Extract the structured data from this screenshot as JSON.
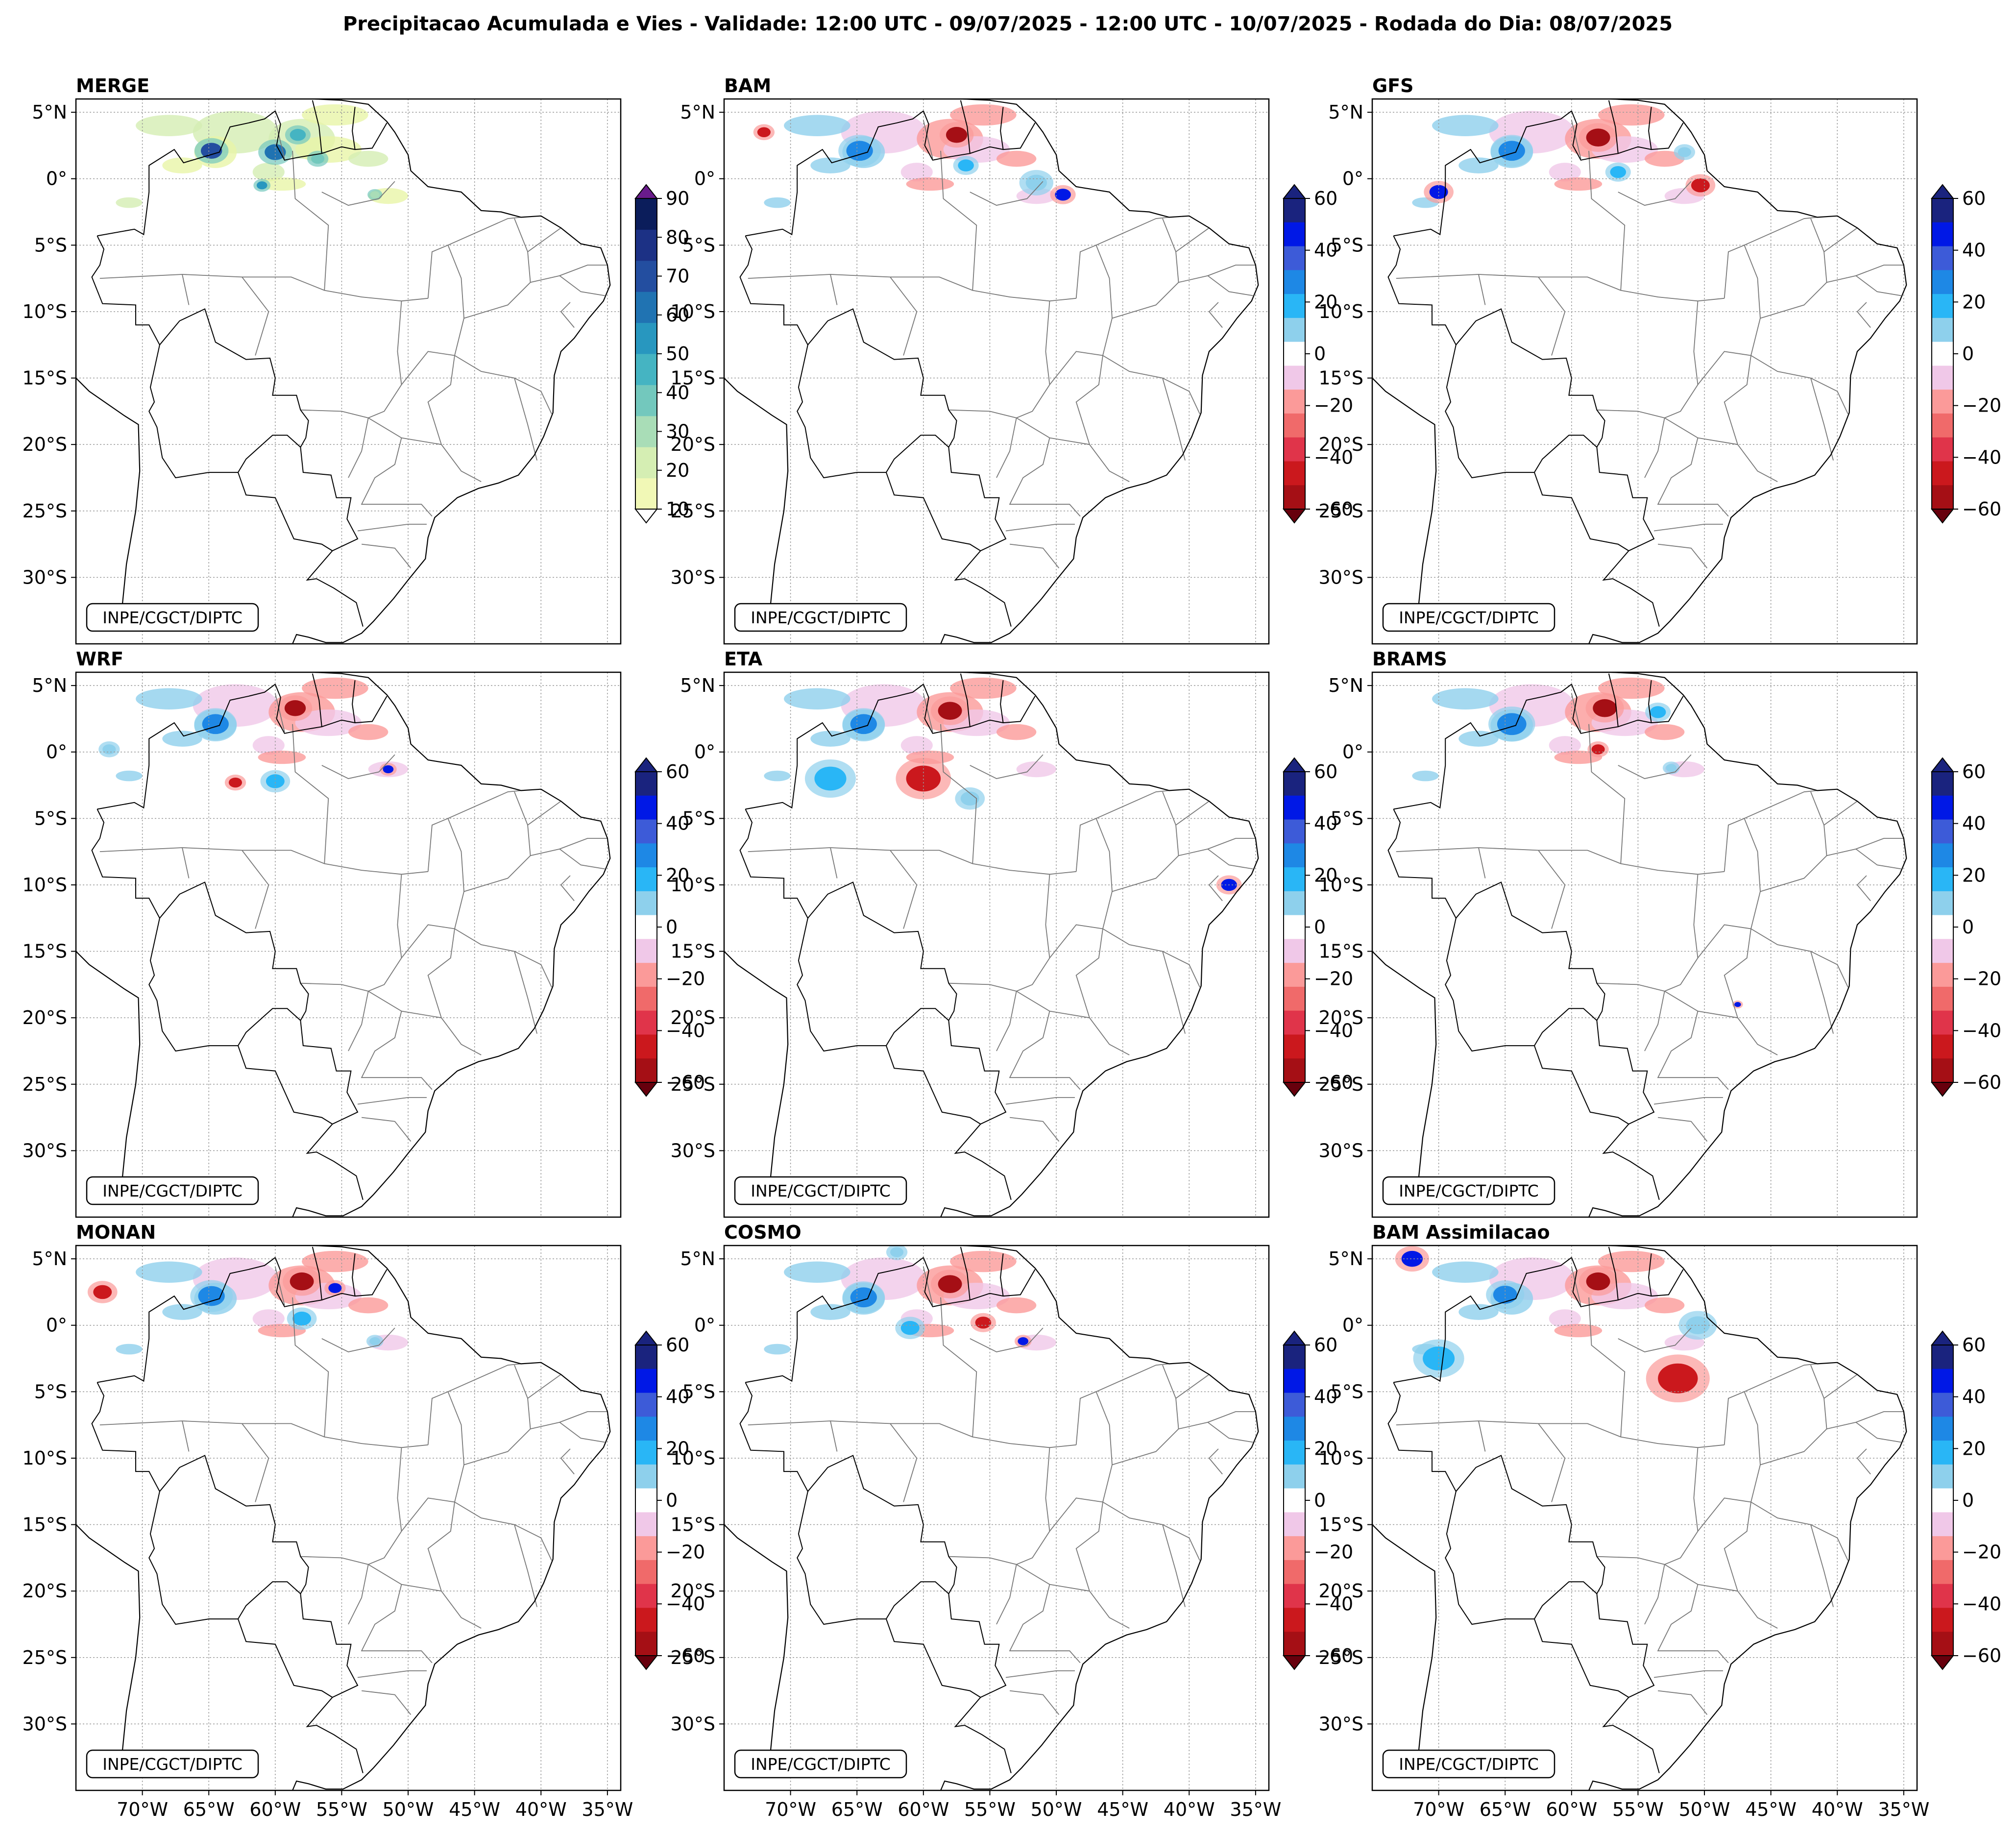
{
  "figure": {
    "title": "Precipitacao Acumulada e Vies - Validade: 12:00 UTC - 09/07/2025 - 12:00 UTC - 10/07/2025 - Rodada do Dia: 08/07/2025"
  },
  "credit": "INPE/CGCT/DIPTC",
  "map_extent": {
    "lon_min": -75,
    "lon_max": -34,
    "lat_min": -35,
    "lat_max": 6
  },
  "lat_ticks": [
    {
      "value": 5,
      "label": "5°N"
    },
    {
      "value": 0,
      "label": "0°"
    },
    {
      "value": -5,
      "label": "5°S"
    },
    {
      "value": -10,
      "label": "10°S"
    },
    {
      "value": -15,
      "label": "15°S"
    },
    {
      "value": -20,
      "label": "20°S"
    },
    {
      "value": -25,
      "label": "25°S"
    },
    {
      "value": -30,
      "label": "30°S"
    }
  ],
  "lon_ticks": [
    {
      "value": -70,
      "label": "70°W"
    },
    {
      "value": -65,
      "label": "65°W"
    },
    {
      "value": -60,
      "label": "60°W"
    },
    {
      "value": -55,
      "label": "55°W"
    },
    {
      "value": -50,
      "label": "50°W"
    },
    {
      "value": -45,
      "label": "45°W"
    },
    {
      "value": -40,
      "label": "40°W"
    },
    {
      "value": -35,
      "label": "35°W"
    }
  ],
  "colorbars": {
    "precip": {
      "levels": [
        10,
        20,
        30,
        40,
        50,
        60,
        70,
        80,
        90
      ],
      "labels": [
        "10",
        "20",
        "30",
        "40",
        "50",
        "60",
        "70",
        "80",
        "90"
      ],
      "colors": [
        "#f1f8b6",
        "#d5eeb3",
        "#a9ddb7",
        "#73c8bd",
        "#45b4c2",
        "#2897bf",
        "#2073b2",
        "#234ea0",
        "#1c3185",
        "#0b1d5b"
      ],
      "over_color": "#6a1b8c",
      "under_color": "#ffffff"
    },
    "bias": {
      "levels": [
        -60,
        -50,
        -40,
        -30,
        -20,
        -10,
        10,
        20,
        30,
        40,
        50,
        60
      ],
      "labels": [
        "60",
        "40",
        "20",
        "0",
        "−20",
        "−40",
        "−60"
      ],
      "label_values": [
        60,
        40,
        20,
        0,
        -20,
        -40,
        -60
      ],
      "colors": [
        "#a50f15",
        "#cb181d",
        "#e0344a",
        "#f06a6a",
        "#fb9a99",
        "#f0c8e8",
        "#ffffff",
        "#8ed0ec",
        "#29b6f6",
        "#1e88e5",
        "#3d5bd8",
        "#0018e6",
        "#1a237e"
      ],
      "over_color": "#1a237e",
      "under_color": "#67000d"
    }
  },
  "panels": [
    {
      "title": "MERGE",
      "colorbar": "precip"
    },
    {
      "title": "BAM",
      "colorbar": "bias"
    },
    {
      "title": "GFS",
      "colorbar": "bias"
    },
    {
      "title": "WRF",
      "colorbar": "bias"
    },
    {
      "title": "ETA",
      "colorbar": "bias"
    },
    {
      "title": "BRAMS",
      "colorbar": "bias"
    },
    {
      "title": "MONAN",
      "colorbar": "bias"
    },
    {
      "title": "COSMO",
      "colorbar": "bias"
    },
    {
      "title": "BAM Assimilacao",
      "colorbar": "bias"
    }
  ]
}
